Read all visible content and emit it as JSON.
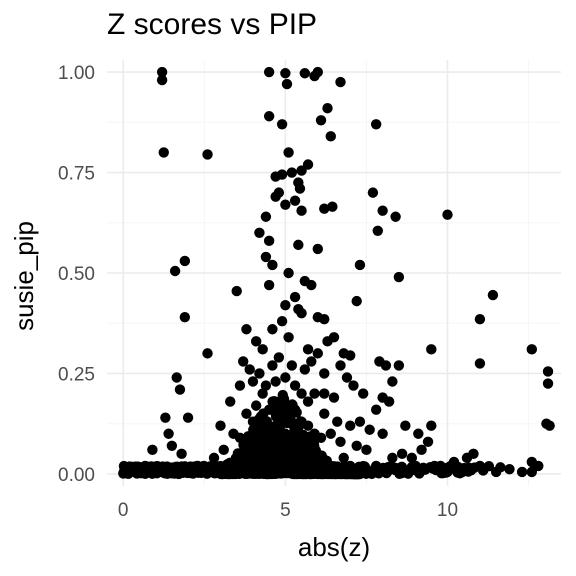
{
  "chart_data": {
    "type": "scatter",
    "title": "Z scores vs PIP",
    "xlabel": "abs(z)",
    "ylabel": "susie_pip",
    "xlim": [
      -0.5,
      13.5
    ],
    "ylim": [
      -0.03,
      1.03
    ],
    "x_ticks": [
      0,
      5,
      10
    ],
    "x_tick_labels": [
      "0",
      "5",
      "10"
    ],
    "y_ticks": [
      0,
      0.25,
      0.5,
      0.75,
      1.0
    ],
    "y_tick_labels": [
      "0.00",
      "0.25",
      "0.50",
      "0.75",
      "1.00"
    ],
    "grid": true,
    "legend": "none",
    "point_color": "#000000",
    "grid_major_color": "#ebebeb",
    "grid_minor_color": "#f5f5f5",
    "series": [
      {
        "points": [
          [
            1.2,
            1.0
          ],
          [
            1.2,
            0.98
          ],
          [
            1.25,
            0.8
          ],
          [
            2.6,
            0.795
          ],
          [
            1.6,
            0.505
          ],
          [
            1.9,
            0.53
          ],
          [
            1.9,
            0.39
          ],
          [
            2.6,
            0.3
          ],
          [
            1.65,
            0.24
          ],
          [
            1.75,
            0.21
          ],
          [
            1.4,
            0.1
          ],
          [
            1.5,
            0.07
          ],
          [
            1.3,
            0.14
          ],
          [
            0.9,
            0.06
          ],
          [
            2.0,
            0.14
          ],
          [
            1.8,
            0.05
          ],
          [
            2.3,
            0.02
          ],
          [
            3.5,
            0.455
          ],
          [
            4.5,
            1.0
          ],
          [
            5.0,
            0.997
          ],
          [
            5.6,
            0.997
          ],
          [
            5.9,
            0.99
          ],
          [
            6.0,
            1.0
          ],
          [
            6.7,
            0.975
          ],
          [
            5.05,
            0.97
          ],
          [
            4.5,
            0.89
          ],
          [
            4.9,
            0.87
          ],
          [
            6.3,
            0.91
          ],
          [
            6.1,
            0.88
          ],
          [
            6.4,
            0.84
          ],
          [
            5.1,
            0.8
          ],
          [
            5.5,
            0.755
          ],
          [
            5.7,
            0.77
          ],
          [
            5.2,
            0.75
          ],
          [
            4.9,
            0.745
          ],
          [
            4.7,
            0.74
          ],
          [
            5.4,
            0.725
          ],
          [
            5.45,
            0.71
          ],
          [
            4.8,
            0.7
          ],
          [
            4.7,
            0.69
          ],
          [
            5.3,
            0.68
          ],
          [
            5.0,
            0.67
          ],
          [
            5.5,
            0.655
          ],
          [
            6.2,
            0.66
          ],
          [
            6.45,
            0.665
          ],
          [
            4.4,
            0.64
          ],
          [
            4.2,
            0.6
          ],
          [
            4.5,
            0.58
          ],
          [
            5.4,
            0.57
          ],
          [
            6.0,
            0.56
          ],
          [
            4.4,
            0.54
          ],
          [
            4.6,
            0.52
          ],
          [
            5.1,
            0.5
          ],
          [
            5.6,
            0.48
          ],
          [
            5.8,
            0.47
          ],
          [
            4.5,
            0.47
          ],
          [
            5.3,
            0.44
          ],
          [
            5.4,
            0.41
          ],
          [
            5.0,
            0.42
          ],
          [
            5.5,
            0.4
          ],
          [
            6.0,
            0.39
          ],
          [
            6.2,
            0.385
          ],
          [
            4.9,
            0.38
          ],
          [
            4.6,
            0.36
          ],
          [
            5.1,
            0.34
          ],
          [
            4.1,
            0.33
          ],
          [
            3.8,
            0.36
          ],
          [
            4.3,
            0.31
          ],
          [
            5.7,
            0.31
          ],
          [
            6.5,
            0.34
          ],
          [
            6.3,
            0.33
          ],
          [
            6.0,
            0.3
          ],
          [
            5.8,
            0.28
          ],
          [
            5.6,
            0.26
          ],
          [
            6.2,
            0.25
          ],
          [
            6.8,
            0.3
          ],
          [
            7.0,
            0.295
          ],
          [
            6.7,
            0.27
          ],
          [
            7.8,
            0.87
          ],
          [
            7.7,
            0.7
          ],
          [
            8.0,
            0.655
          ],
          [
            8.4,
            0.64
          ],
          [
            7.85,
            0.605
          ],
          [
            7.3,
            0.52
          ],
          [
            8.5,
            0.49
          ],
          [
            7.2,
            0.43
          ],
          [
            10.0,
            0.645
          ],
          [
            11.4,
            0.445
          ],
          [
            11.0,
            0.385
          ],
          [
            9.5,
            0.31
          ],
          [
            11.0,
            0.275
          ],
          [
            12.6,
            0.31
          ],
          [
            13.1,
            0.255
          ],
          [
            13.1,
            0.225
          ],
          [
            13.05,
            0.125
          ],
          [
            13.15,
            0.12
          ],
          [
            6.2,
            0.2
          ],
          [
            6.5,
            0.19
          ],
          [
            6.9,
            0.24
          ],
          [
            7.1,
            0.22
          ],
          [
            7.4,
            0.2
          ],
          [
            7.9,
            0.28
          ],
          [
            8.1,
            0.27
          ],
          [
            8.3,
            0.23
          ],
          [
            8.5,
            0.27
          ],
          [
            8.2,
            0.18
          ],
          [
            7.8,
            0.16
          ],
          [
            8.0,
            0.19
          ],
          [
            7.3,
            0.13
          ],
          [
            8.7,
            0.12
          ],
          [
            8.0,
            0.1
          ],
          [
            7.6,
            0.11
          ],
          [
            9.1,
            0.1
          ],
          [
            9.5,
            0.12
          ],
          [
            9.4,
            0.08
          ],
          [
            9.2,
            0.06
          ],
          [
            8.9,
            0.04
          ],
          [
            10.2,
            0.03
          ],
          [
            10.6,
            0.04
          ],
          [
            10.8,
            0.05
          ],
          [
            11.0,
            0.02
          ],
          [
            11.5,
            0.005
          ],
          [
            12.3,
            0.005
          ],
          [
            12.6,
            0.03
          ],
          [
            12.8,
            0.02
          ],
          [
            12.6,
            0.005
          ],
          [
            10.0,
            0.005
          ],
          [
            9.0,
            0.01
          ],
          [
            6.2,
            0.15
          ],
          [
            6.6,
            0.13
          ],
          [
            7.0,
            0.12
          ],
          [
            6.4,
            0.1
          ],
          [
            6.7,
            0.08
          ],
          [
            7.2,
            0.07
          ],
          [
            7.5,
            0.06
          ],
          [
            6.8,
            0.04
          ],
          [
            7.0,
            0.02
          ],
          [
            7.8,
            0.02
          ],
          [
            8.3,
            0.04
          ],
          [
            8.6,
            0.05
          ],
          [
            9.6,
            0.02
          ],
          [
            9.9,
            0.01
          ],
          [
            3.0,
            0.12
          ],
          [
            3.3,
            0.18
          ],
          [
            3.6,
            0.22
          ],
          [
            3.4,
            0.1
          ],
          [
            3.1,
            0.06
          ],
          [
            2.8,
            0.04
          ],
          [
            3.7,
            0.28
          ],
          [
            3.9,
            0.26
          ],
          [
            4.0,
            0.23
          ],
          [
            4.2,
            0.25
          ],
          [
            4.3,
            0.2
          ],
          [
            4.4,
            0.22
          ],
          [
            4.6,
            0.27
          ],
          [
            4.7,
            0.23
          ],
          [
            4.8,
            0.29
          ],
          [
            5.0,
            0.24
          ],
          [
            5.2,
            0.27
          ],
          [
            5.3,
            0.22
          ],
          [
            5.5,
            0.2
          ],
          [
            5.7,
            0.18
          ],
          [
            5.9,
            0.2
          ],
          [
            3.8,
            0.15
          ],
          [
            4.0,
            0.13
          ],
          [
            4.1,
            0.17
          ],
          [
            4.3,
            0.14
          ],
          [
            4.5,
            0.16
          ],
          [
            4.7,
            0.15
          ],
          [
            4.9,
            0.17
          ],
          [
            5.1,
            0.15
          ],
          [
            5.3,
            0.16
          ],
          [
            5.5,
            0.13
          ],
          [
            5.7,
            0.12
          ],
          [
            5.9,
            0.1
          ],
          [
            6.1,
            0.09
          ],
          [
            3.6,
            0.09
          ],
          [
            3.8,
            0.07
          ],
          [
            4.0,
            0.08
          ],
          [
            4.2,
            0.09
          ],
          [
            4.4,
            0.07
          ],
          [
            4.6,
            0.09
          ],
          [
            4.8,
            0.08
          ],
          [
            5.0,
            0.1
          ],
          [
            5.2,
            0.07
          ],
          [
            5.4,
            0.09
          ],
          [
            5.6,
            0.07
          ],
          [
            5.8,
            0.06
          ]
        ]
      }
    ],
    "dense_band": {
      "x_range": [
        0,
        12.6
      ],
      "y_range": [
        0,
        0.02
      ],
      "note_visible": false
    }
  }
}
